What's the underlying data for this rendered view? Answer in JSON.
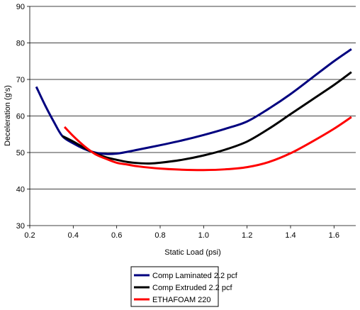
{
  "chart_data": {
    "type": "line",
    "title": "",
    "xlabel": "Static Load (psi)",
    "ylabel": "Deceleration (g's)",
    "xlim": [
      0.2,
      1.7
    ],
    "ylim": [
      30,
      90
    ],
    "x_ticks": [
      0.2,
      0.4,
      0.6,
      0.8,
      1.0,
      1.2,
      1.4,
      1.6
    ],
    "x_tick_labels": [
      "0.2",
      "0.4",
      "0.6",
      "0.8",
      "1.0",
      "1.2",
      "1.4",
      "1.6"
    ],
    "y_ticks": [
      30,
      40,
      50,
      60,
      70,
      80,
      90
    ],
    "y_tick_labels": [
      "30",
      "40",
      "50",
      "60",
      "70",
      "80",
      "90"
    ],
    "grid": "horizontal",
    "legend": "bottom",
    "series": [
      {
        "name": "Comp Laminated 2.2 pcf",
        "color": "#00007f",
        "x": [
          0.23,
          0.27,
          0.31,
          0.35,
          0.4,
          0.45,
          0.5,
          0.55,
          0.6,
          0.65,
          0.7,
          0.8,
          0.9,
          1.0,
          1.1,
          1.2,
          1.3,
          1.4,
          1.5,
          1.6,
          1.68
        ],
        "y": [
          68,
          63,
          58.5,
          54.5,
          52.5,
          51,
          50,
          49.6,
          49.7,
          50.2,
          50.8,
          52,
          53.3,
          54.8,
          56.5,
          58.5,
          62,
          66,
          70.5,
          75,
          78.3
        ]
      },
      {
        "name": "Comp Extruded 2.2 pcf",
        "color": "#000000",
        "x": [
          0.35,
          0.4,
          0.45,
          0.5,
          0.55,
          0.6,
          0.65,
          0.7,
          0.75,
          0.8,
          0.9,
          1.0,
          1.1,
          1.2,
          1.3,
          1.4,
          1.5,
          1.6,
          1.68
        ],
        "y": [
          54.5,
          53,
          51.3,
          49.8,
          48.7,
          48,
          47.4,
          47.1,
          47,
          47.2,
          48,
          49.2,
          50.8,
          53,
          56.5,
          60.5,
          64.5,
          68.5,
          72
        ]
      },
      {
        "name": "ETHAFOAM 220",
        "color": "#ff0000",
        "x": [
          0.36,
          0.4,
          0.45,
          0.5,
          0.55,
          0.6,
          0.65,
          0.7,
          0.8,
          0.9,
          1.0,
          1.1,
          1.2,
          1.3,
          1.4,
          1.5,
          1.6,
          1.68
        ],
        "y": [
          57,
          54.5,
          51.8,
          49.6,
          48.3,
          47.2,
          46.7,
          46.2,
          45.6,
          45.3,
          45.2,
          45.4,
          46,
          47.4,
          49.8,
          53,
          56.5,
          59.7
        ]
      }
    ]
  }
}
